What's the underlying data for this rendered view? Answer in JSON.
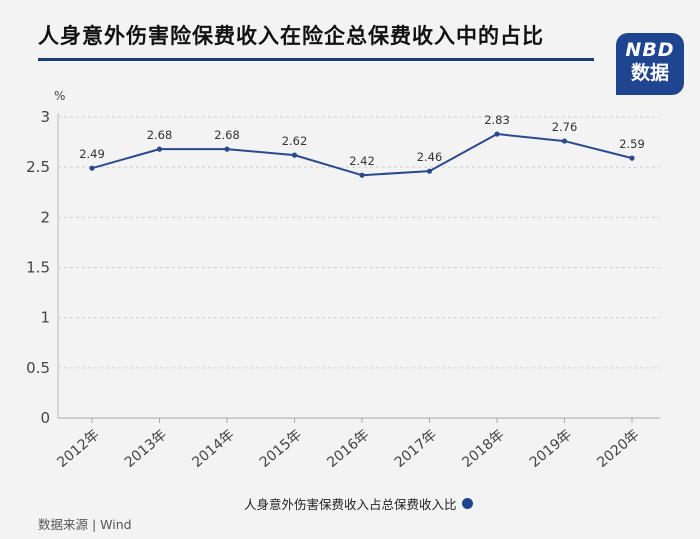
{
  "title": "人身意外伤害险保费收入在险企总保费收入中的占比",
  "logo": {
    "line1": "NBD",
    "line2": "数据"
  },
  "source": "数据来源 | Wind",
  "colors": {
    "line": "#2b4a8e",
    "accent": "#1f4591",
    "grid": "#cfcfcf"
  },
  "chart_data": {
    "type": "line",
    "title": "人身意外伤害险保费收入在险企总保费收入中的占比",
    "ylabel": "%",
    "xlabel": "",
    "ylim": [
      0,
      3
    ],
    "yticks": [
      "0",
      "0.5",
      "1",
      "1.5",
      "2",
      "2.5",
      "3"
    ],
    "categories": [
      "2012年",
      "2013年",
      "2014年",
      "2015年",
      "2016年",
      "2017年",
      "2018年",
      "2019年",
      "2020年"
    ],
    "series": [
      {
        "name": "人身意外伤害保费收入占总保费收入比",
        "values": [
          2.49,
          2.68,
          2.68,
          2.62,
          2.42,
          2.46,
          2.83,
          2.76,
          2.59
        ],
        "labels": [
          "2.49",
          "2.68",
          "2.68",
          "2.62",
          "2.42",
          "2.46",
          "2.83",
          "2.76",
          "2.59"
        ]
      }
    ],
    "grid": true,
    "legend_position": "bottom"
  }
}
